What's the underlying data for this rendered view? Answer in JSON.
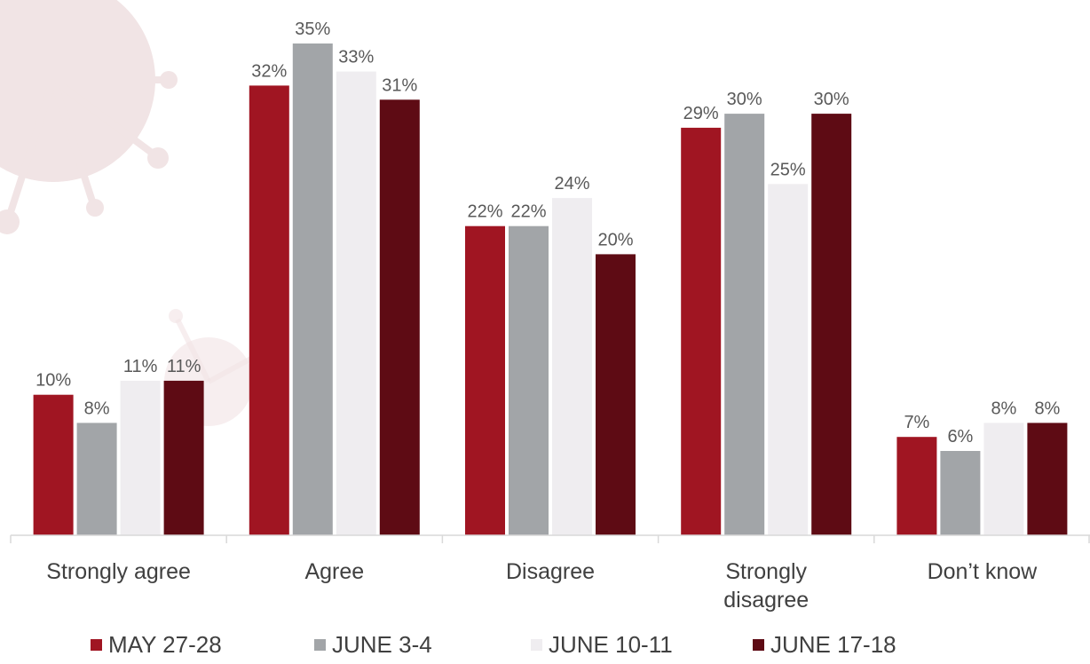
{
  "chart_data": {
    "type": "bar",
    "categories": [
      [
        "Strongly agree"
      ],
      [
        "Agree"
      ],
      [
        "Disagree"
      ],
      [
        "Strongly",
        "disagree"
      ],
      [
        "Don’t know"
      ]
    ],
    "series": [
      {
        "name": "MAY 27-28",
        "color": "#a01522",
        "values": [
          10,
          32,
          22,
          29,
          7
        ],
        "labels": [
          "10%",
          "32%",
          "22%",
          "29%",
          "7%"
        ]
      },
      {
        "name": "JUNE 3-4",
        "color": "#a2a5a8",
        "values": [
          8,
          35,
          22,
          30,
          6
        ],
        "labels": [
          "8%",
          "35%",
          "22%",
          "30%",
          "6%"
        ]
      },
      {
        "name": "JUNE 10-11",
        "color": "#efedf0",
        "values": [
          11,
          33,
          24,
          25,
          8
        ],
        "labels": [
          "11%",
          "33%",
          "24%",
          "25%",
          "8%"
        ]
      },
      {
        "name": "JUNE 17-18",
        "color": "#5e0b14",
        "values": [
          11,
          31,
          20,
          30,
          8
        ],
        "labels": [
          "11%",
          "31%",
          "20%",
          "30%",
          "8%"
        ]
      }
    ],
    "ylim": [
      0,
      35
    ],
    "grid": false,
    "legend": "bottom",
    "title": "",
    "xlabel": "",
    "ylabel": ""
  }
}
